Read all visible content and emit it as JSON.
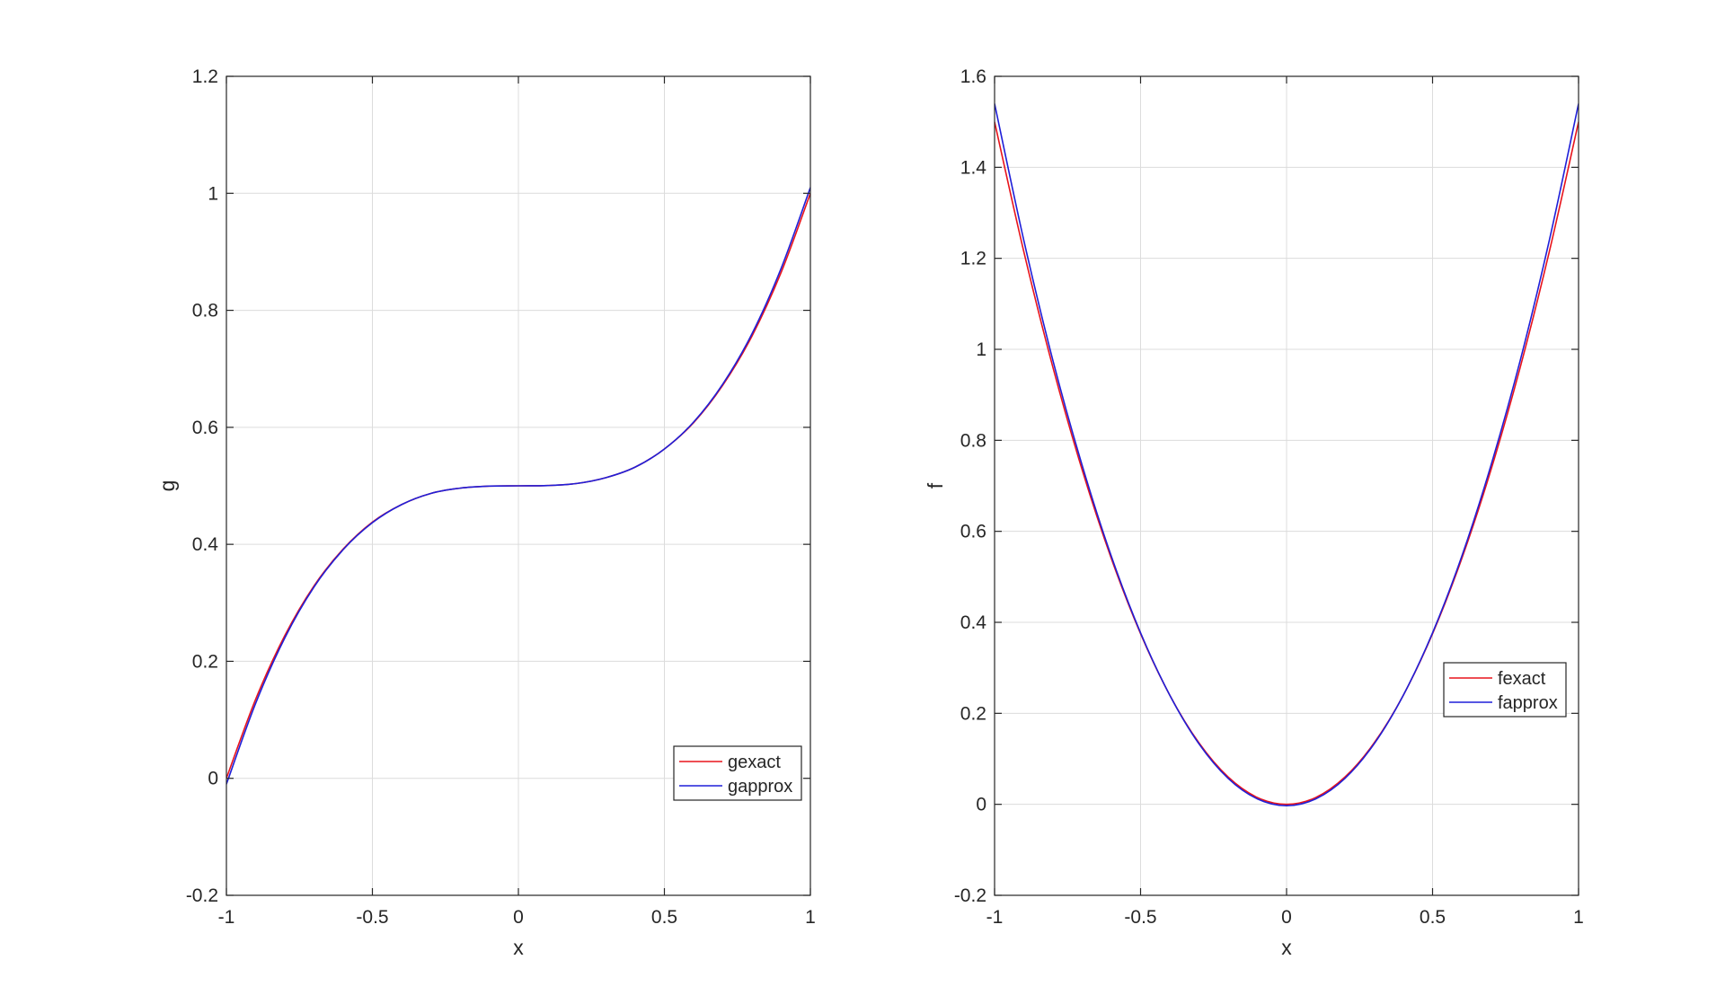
{
  "colors": {
    "series_exact": "#e8141c",
    "series_approx": "#1f1fd8",
    "grid": "#dcdcdc",
    "axes": "#262626",
    "background": "#ffffff"
  },
  "chart_data": [
    {
      "type": "line",
      "xlabel": "x",
      "ylabel": "g",
      "xlim": [
        -1,
        1
      ],
      "ylim": [
        -0.2,
        1.2
      ],
      "xticks": [
        -1,
        -0.5,
        0,
        0.5,
        1
      ],
      "xtick_labels": [
        "-1",
        "-0.5",
        "0",
        "0.5",
        "1"
      ],
      "yticks": [
        -0.2,
        0,
        0.2,
        0.4,
        0.6,
        0.8,
        1,
        1.2
      ],
      "ytick_labels": [
        "-0.2",
        "0",
        "0.2",
        "0.4",
        "0.6",
        "0.8",
        "1",
        "1.2"
      ],
      "grid": true,
      "legend_position": "bottom-right",
      "series": [
        {
          "name": "gexact",
          "color": "#e8141c",
          "x": [
            -1,
            -0.9,
            -0.8,
            -0.7,
            -0.6,
            -0.5,
            -0.4,
            -0.3,
            -0.2,
            -0.1,
            0,
            0.1,
            0.2,
            0.3,
            0.4,
            0.5,
            0.6,
            0.7,
            0.8,
            0.9,
            1
          ],
          "y": [
            0,
            0.135,
            0.244,
            0.329,
            0.392,
            0.438,
            0.468,
            0.487,
            0.496,
            0.4995,
            0.5,
            0.5005,
            0.504,
            0.514,
            0.532,
            0.563,
            0.608,
            0.672,
            0.756,
            0.865,
            1.0
          ]
        },
        {
          "name": "gapprox",
          "color": "#1f1fd8",
          "x": [
            -1,
            -0.9,
            -0.8,
            -0.7,
            -0.6,
            -0.5,
            -0.4,
            -0.3,
            -0.2,
            -0.1,
            0,
            0.1,
            0.2,
            0.3,
            0.4,
            0.5,
            0.6,
            0.7,
            0.8,
            0.9,
            1
          ],
          "y": [
            -0.01,
            0.128,
            0.24,
            0.327,
            0.391,
            0.437,
            0.468,
            0.487,
            0.496,
            0.4995,
            0.5,
            0.5005,
            0.504,
            0.514,
            0.532,
            0.563,
            0.609,
            0.674,
            0.76,
            0.872,
            1.01
          ]
        }
      ]
    },
    {
      "type": "line",
      "xlabel": "x",
      "ylabel": "f",
      "xlim": [
        -1,
        1
      ],
      "ylim": [
        -0.2,
        1.6
      ],
      "xticks": [
        -1,
        -0.5,
        0,
        0.5,
        1
      ],
      "xtick_labels": [
        "-1",
        "-0.5",
        "0",
        "0.5",
        "1"
      ],
      "yticks": [
        -0.2,
        0,
        0.2,
        0.4,
        0.6,
        0.8,
        1,
        1.2,
        1.4,
        1.6
      ],
      "ytick_labels": [
        "-0.2",
        "0",
        "0.2",
        "0.4",
        "0.6",
        "0.8",
        "1",
        "1.2",
        "1.4",
        "1.6"
      ],
      "grid": true,
      "legend_position": "right",
      "series": [
        {
          "name": "fexact",
          "color": "#e8141c",
          "x": [
            -1,
            -0.9,
            -0.8,
            -0.7,
            -0.6,
            -0.5,
            -0.4,
            -0.3,
            -0.2,
            -0.1,
            0,
            0.1,
            0.2,
            0.3,
            0.4,
            0.5,
            0.6,
            0.7,
            0.8,
            0.9,
            1
          ],
          "y": [
            1.5,
            1.215,
            0.96,
            0.735,
            0.54,
            0.375,
            0.24,
            0.135,
            0.06,
            0.015,
            0,
            0.015,
            0.06,
            0.135,
            0.24,
            0.375,
            0.54,
            0.735,
            0.96,
            1.215,
            1.5
          ]
        },
        {
          "name": "fapprox",
          "color": "#1f1fd8",
          "x": [
            -1,
            -0.9,
            -0.8,
            -0.7,
            -0.6,
            -0.5,
            -0.4,
            -0.3,
            -0.2,
            -0.1,
            0,
            0.1,
            0.2,
            0.3,
            0.4,
            0.5,
            0.6,
            0.7,
            0.8,
            0.9,
            1
          ],
          "y": [
            1.54,
            1.24,
            0.975,
            0.745,
            0.545,
            0.377,
            0.24,
            0.133,
            0.057,
            0.012,
            -0.003,
            0.012,
            0.057,
            0.133,
            0.24,
            0.377,
            0.545,
            0.745,
            0.975,
            1.24,
            1.54
          ]
        }
      ]
    }
  ]
}
